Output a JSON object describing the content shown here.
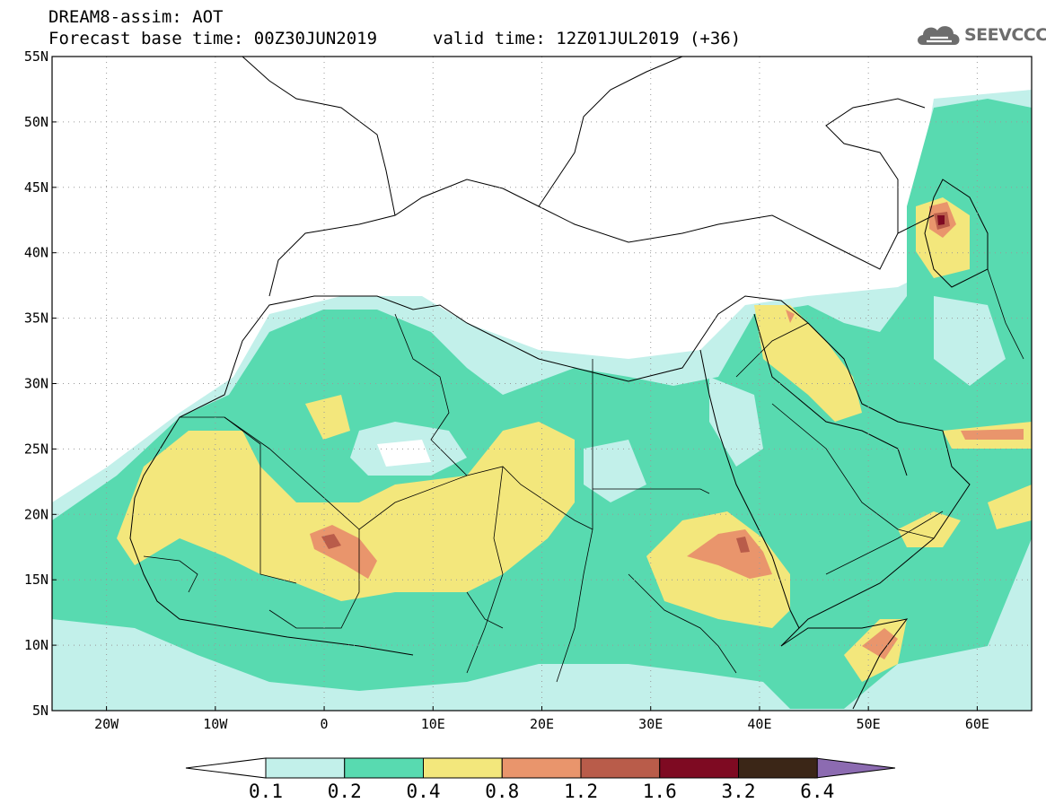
{
  "header": {
    "title_line1": "DREAM8-assim: AOT",
    "title_line2": "Forecast base time: 00Z30JUN2019",
    "valid_time": "valid time: 12Z01JUL2019 (+36)"
  },
  "logo": {
    "text": "SEEVCCC",
    "icon": "cloud-icon"
  },
  "map": {
    "lon_range": [
      -25,
      65
    ],
    "lat_range": [
      5,
      55
    ],
    "lat_labels": [
      "55N",
      "50N",
      "45N",
      "40N",
      "35N",
      "30N",
      "25N",
      "20N",
      "15N",
      "10N",
      "5N"
    ],
    "lon_labels": [
      "20W",
      "10W",
      "0",
      "10E",
      "20E",
      "30E",
      "40E",
      "50E",
      "60E"
    ]
  },
  "colorbar": {
    "labels": [
      "0.1",
      "0.2",
      "0.4",
      "0.8",
      "1.2",
      "1.6",
      "3.2",
      "6.4"
    ],
    "colors": [
      "#c2f0ea",
      "#58dab0",
      "#f3e77c",
      "#e9956c",
      "#b95c4a",
      "#7e0a22",
      "#3b2617",
      "#8c6bb1"
    ]
  }
}
